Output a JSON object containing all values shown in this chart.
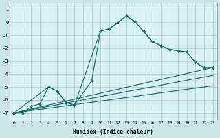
{
  "xlabel": "Humidex (Indice chaleur)",
  "bg_color": "#c8e6e6",
  "plot_bg": "#d8efef",
  "line_color": "#1a6e6a",
  "xlim": [
    -0.5,
    23.5
  ],
  "ylim": [
    -7.6,
    1.5
  ],
  "yticks": [
    1,
    0,
    -1,
    -2,
    -3,
    -4,
    -5,
    -6,
    -7
  ],
  "xticks": [
    0,
    1,
    2,
    3,
    4,
    5,
    6,
    7,
    8,
    9,
    10,
    11,
    12,
    13,
    14,
    15,
    16,
    17,
    18,
    19,
    20,
    21,
    22,
    23
  ],
  "line1_x": [
    0,
    1,
    2,
    3,
    4,
    5,
    6,
    7,
    9,
    10,
    11,
    12,
    13,
    14,
    15,
    16,
    17,
    18,
    19,
    20,
    21,
    22,
    23
  ],
  "line1_y": [
    -7,
    -7,
    -6.5,
    -6.3,
    -5,
    -5.3,
    -6.2,
    -6.4,
    -4.5,
    -0.7,
    -0.5,
    -0.05,
    0.5,
    0.05,
    -0.7,
    -1.5,
    -1.8,
    -2.1,
    -2.2,
    -2.3,
    -3.1,
    -3.5,
    -3.5
  ],
  "line2_x": [
    0,
    4,
    5,
    6,
    7,
    10,
    11,
    12,
    13,
    14,
    15,
    16,
    17,
    18,
    19,
    20,
    21,
    22,
    23
  ],
  "line2_y": [
    -7,
    -5,
    -5.3,
    -6.2,
    -6.4,
    -0.7,
    -0.5,
    -0.05,
    0.5,
    0.05,
    -0.7,
    -1.5,
    -1.8,
    -2.1,
    -2.2,
    -2.3,
    -3.1,
    -3.5,
    -3.5
  ],
  "trend1_x": [
    0,
    23
  ],
  "trend1_y": [
    -7.0,
    -3.5
  ],
  "trend2_x": [
    0,
    23
  ],
  "trend2_y": [
    -7.0,
    -4.1
  ],
  "trend3_x": [
    0,
    23
  ],
  "trend3_y": [
    -7.0,
    -4.9
  ]
}
